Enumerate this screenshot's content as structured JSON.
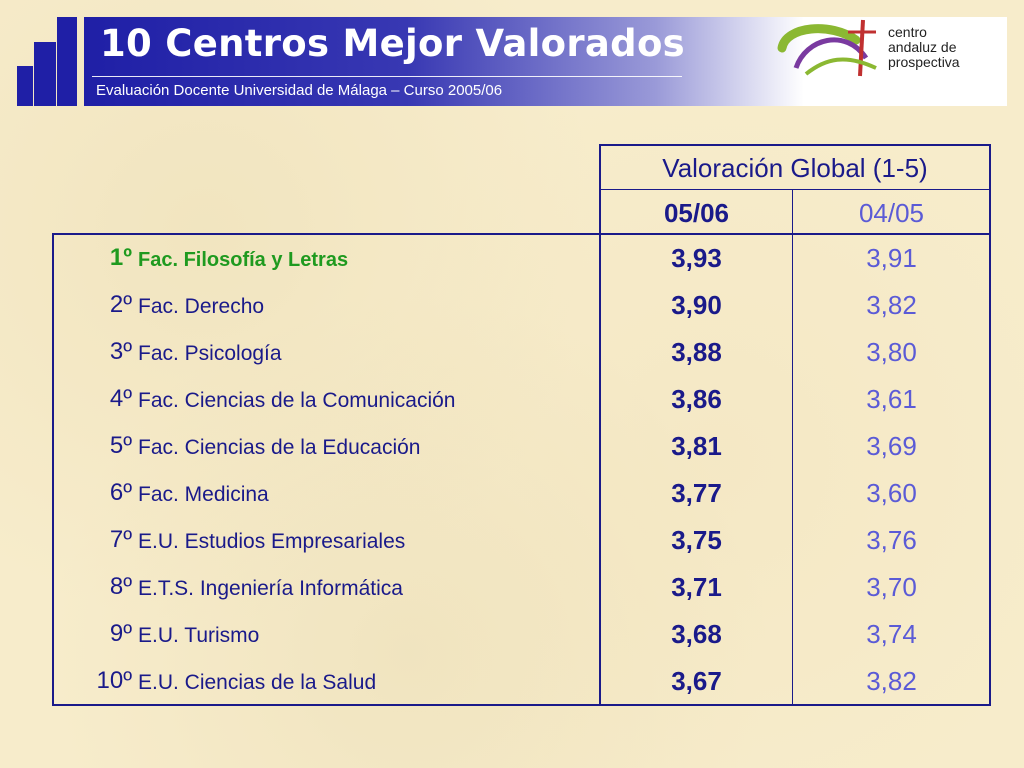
{
  "header": {
    "title": "10 Centros Mejor Valorados",
    "subtitle": "Evaluación Docente Universidad de Málaga – Curso 2005/06",
    "logo_lines": [
      "centro",
      "andaluz de",
      "prospectiva"
    ]
  },
  "table": {
    "group_header": "Valoración Global (1-5)",
    "col_current": "05/06",
    "col_previous": "04/05",
    "rows": [
      {
        "rank": "1º",
        "name": "Fac. Filosofía y Letras",
        "current": "3,93",
        "previous": "3,91"
      },
      {
        "rank": "2º",
        "name": "Fac. Derecho",
        "current": "3,90",
        "previous": "3,82"
      },
      {
        "rank": "3º",
        "name": "Fac. Psicología",
        "current": "3,88",
        "previous": "3,80"
      },
      {
        "rank": "4º",
        "name": "Fac. Ciencias de la Comunicación",
        "current": "3,86",
        "previous": "3,61"
      },
      {
        "rank": "5º",
        "name": "Fac. Ciencias de la Educación",
        "current": "3,81",
        "previous": "3,69"
      },
      {
        "rank": "6º",
        "name": "Fac. Medicina",
        "current": "3,77",
        "previous": "3,60"
      },
      {
        "rank": "7º",
        "name": "E.U. Estudios Empresariales",
        "current": "3,75",
        "previous": "3,76"
      },
      {
        "rank": "8º",
        "name": "E.T.S. Ingeniería Informática",
        "current": "3,71",
        "previous": "3,70"
      },
      {
        "rank": "9º",
        "name": "E.U. Turismo",
        "current": "3,68",
        "previous": "3,74"
      },
      {
        "rank": "10º",
        "name": "E.U. Ciencias de la Salud",
        "current": "3,67",
        "previous": "3,82"
      }
    ]
  },
  "colors": {
    "primary": "#1f1fa6",
    "text": "#1a1a8a",
    "highlight": "#1f9a1f",
    "previous_value": "#5b5bd6"
  },
  "icons": [
    "staircase-logo-icon",
    "centro-andaluz-prospectiva-logo-icon"
  ]
}
